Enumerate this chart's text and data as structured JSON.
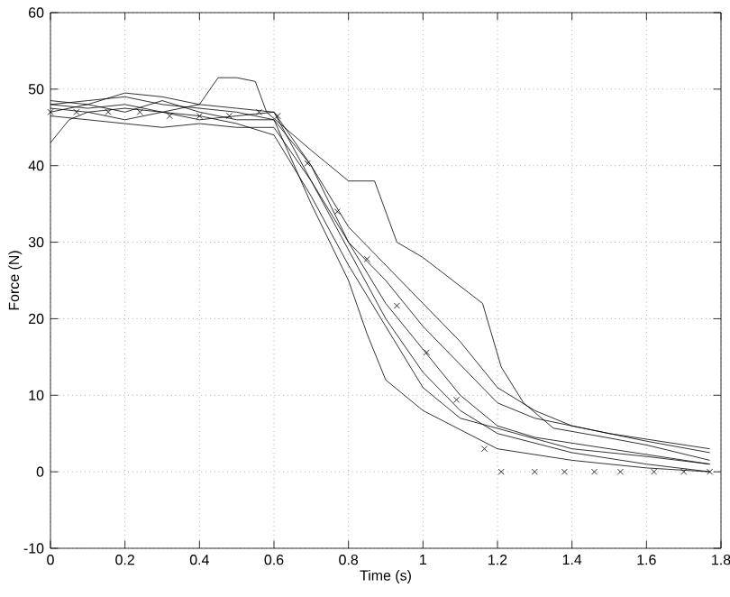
{
  "chart_data": {
    "type": "line",
    "xlabel": "Time (s)",
    "ylabel": "Force (N)",
    "xlim": [
      0,
      1.8
    ],
    "ylim": [
      -10,
      60
    ],
    "xticks": [
      0,
      0.2,
      0.4,
      0.6,
      0.8,
      1,
      1.2,
      1.4,
      1.6,
      1.8
    ],
    "yticks": [
      -10,
      0,
      10,
      20,
      30,
      40,
      50,
      60
    ],
    "grid": true,
    "series": [
      {
        "type": "line",
        "color": "#000000",
        "x": [
          0,
          0.05,
          0.1,
          0.2,
          0.3,
          0.4,
          0.45,
          0.5,
          0.55,
          0.58,
          0.7,
          0.8,
          0.87,
          0.93,
          1.0,
          1.16,
          1.21,
          1.27,
          1.35,
          1.49,
          1.6,
          1.77
        ],
        "values": [
          43,
          46,
          47,
          47.5,
          47,
          48,
          51.5,
          51.5,
          51,
          47,
          42,
          38,
          38,
          30,
          28,
          22,
          13.7,
          9,
          5.7,
          4.5,
          3.5,
          1.5
        ]
      },
      {
        "type": "line",
        "color": "#000000",
        "x": [
          0,
          0.1,
          0.2,
          0.3,
          0.4,
          0.5,
          0.6,
          0.7,
          0.8,
          0.85,
          0.9,
          1.0,
          1.2,
          1.4,
          1.6,
          1.77
        ],
        "values": [
          48,
          48.5,
          49,
          48,
          47.5,
          47,
          46,
          35,
          25,
          18,
          12,
          8,
          3,
          1.5,
          0.5,
          0
        ]
      },
      {
        "type": "line",
        "color": "#000000",
        "x": [
          0,
          0.1,
          0.2,
          0.3,
          0.4,
          0.5,
          0.6,
          0.7,
          0.8,
          0.9,
          1.0,
          1.1,
          1.2,
          1.4,
          1.6,
          1.77
        ],
        "values": [
          47.5,
          47,
          46,
          47,
          46,
          46.5,
          47,
          38,
          29,
          20,
          13,
          8,
          5,
          2.5,
          1,
          0
        ]
      },
      {
        "type": "line",
        "color": "#000000",
        "x": [
          0,
          0.1,
          0.2,
          0.3,
          0.4,
          0.5,
          0.6,
          0.7,
          0.8,
          0.9,
          1.0,
          1.1,
          1.2,
          1.3,
          1.5,
          1.77
        ],
        "values": [
          48.5,
          48,
          49.5,
          49,
          48,
          47.5,
          47,
          40,
          30,
          22,
          16,
          10,
          6,
          4.5,
          3,
          1
        ]
      },
      {
        "type": "line",
        "color": "#000000",
        "x": [
          0,
          0.1,
          0.2,
          0.3,
          0.4,
          0.5,
          0.6,
          0.7,
          0.8,
          0.9,
          1.0,
          1.1,
          1.2,
          1.3,
          1.4,
          1.6,
          1.77
        ],
        "values": [
          47,
          48,
          47,
          48.5,
          47,
          46,
          46,
          40,
          32,
          27,
          22,
          17,
          11,
          8,
          6,
          4,
          2.5
        ]
      },
      {
        "type": "line",
        "color": "#000000",
        "x": [
          0,
          0.1,
          0.2,
          0.3,
          0.4,
          0.5,
          0.6,
          0.7,
          0.8,
          0.9,
          1.0,
          1.1,
          1.2,
          1.3,
          1.5,
          1.77
        ],
        "values": [
          46.5,
          46,
          45.5,
          45,
          45.5,
          45,
          45,
          38,
          30,
          25,
          19,
          14,
          9,
          7,
          5,
          3
        ]
      },
      {
        "type": "line",
        "color": "#000000",
        "x": [
          0,
          0.1,
          0.2,
          0.3,
          0.4,
          0.5,
          0.6,
          0.7,
          0.8,
          0.9,
          1.0,
          1.1,
          1.25,
          1.4,
          1.6,
          1.77
        ],
        "values": [
          48,
          47.5,
          48,
          47,
          46.5,
          45.5,
          44,
          36,
          27,
          19,
          11,
          7,
          5,
          3,
          2,
          1
        ]
      },
      {
        "type": "scatter",
        "marker": "cross",
        "color": "#000000",
        "x": [
          0,
          0.07,
          0.155,
          0.24,
          0.32,
          0.4,
          0.48,
          0.56,
          0.61,
          0.69,
          0.77,
          0.85,
          0.93,
          1.01,
          1.09,
          1.165,
          1.21,
          1.3,
          1.38,
          1.46,
          1.53,
          1.62,
          1.7,
          1.77
        ],
        "values": [
          47,
          47,
          47,
          47,
          46.5,
          46.5,
          46.5,
          47,
          46.5,
          40.3,
          34,
          27.8,
          21.7,
          15.6,
          9.4,
          3,
          0,
          0,
          0,
          0,
          0,
          0,
          0,
          0
        ]
      }
    ]
  }
}
